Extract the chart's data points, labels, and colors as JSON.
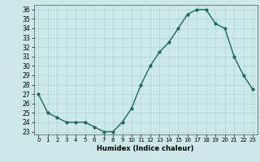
{
  "x": [
    0,
    1,
    2,
    3,
    4,
    5,
    6,
    7,
    8,
    9,
    10,
    11,
    12,
    13,
    14,
    15,
    16,
    17,
    18,
    19,
    20,
    21,
    22,
    23
  ],
  "y": [
    27,
    25,
    24.5,
    24,
    24,
    24,
    23.5,
    23,
    23,
    24,
    25.5,
    28,
    30,
    31.5,
    32.5,
    34,
    35.5,
    36,
    36,
    34.5,
    34,
    31,
    29,
    27.5
  ],
  "xlabel": "Humidex (Indice chaleur)",
  "xlim": [
    -0.5,
    23.5
  ],
  "ylim": [
    22.7,
    36.5
  ],
  "yticks": [
    23,
    24,
    25,
    26,
    27,
    28,
    29,
    30,
    31,
    32,
    33,
    34,
    35,
    36
  ],
  "xticks": [
    0,
    1,
    2,
    3,
    4,
    5,
    6,
    7,
    8,
    9,
    10,
    11,
    12,
    13,
    14,
    15,
    16,
    17,
    18,
    19,
    20,
    21,
    22,
    23
  ],
  "line_color": "#1a6b5a",
  "marker_color": "#1a6b5a",
  "bg_color": "#cce8e8",
  "grid_color": "#aad4d4",
  "axes_bg": "#cce8e8"
}
